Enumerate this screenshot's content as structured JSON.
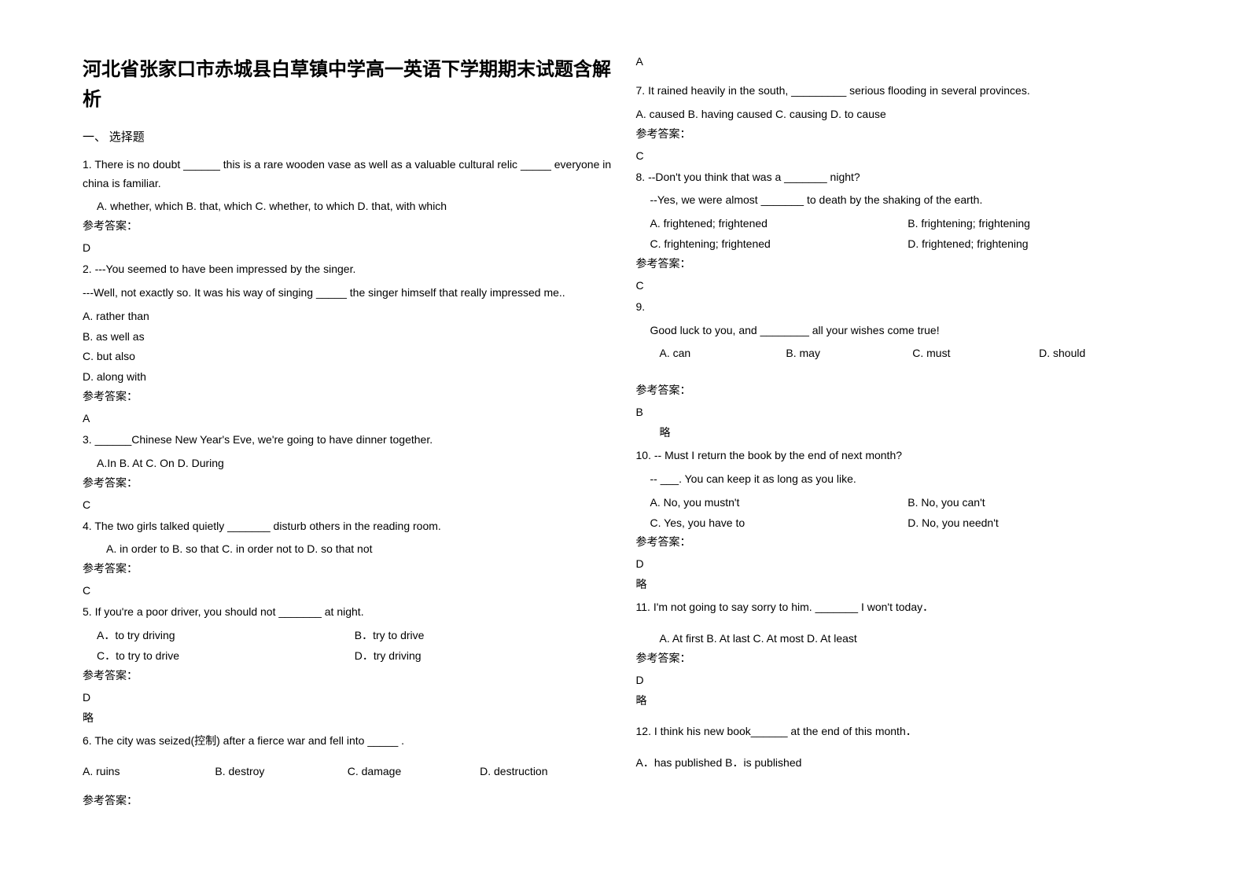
{
  "doc": {
    "title": "河北省张家口市赤城县白草镇中学高一英语下学期期末试题含解析",
    "section1": "一、 选择题",
    "answer_label": "参考答案：",
    "brief": "略",
    "q1": {
      "text": "1. There is no doubt ______ this is a rare wooden vase as well as a valuable cultural relic _____ everyone in china is familiar.",
      "opts": "A. whether, which    B. that, which    C. whether, to which    D. that, with which",
      "ans": "D"
    },
    "q2": {
      "line1": "2. ---You seemed to have been impressed by the singer.",
      "line2": " ---Well, not exactly so. It was his way of singing _____ the singer himself that really impressed me..",
      "a": "A. rather than",
      "b": "B. as well as",
      "c": "C. but also",
      "d": "D. along with",
      "ans": "A"
    },
    "q3": {
      "text": "3. ______Chinese New Year's Eve, we're going to have dinner together.",
      "opts": "A.In         B. At         C. On         D. During",
      "ans": "C"
    },
    "q4": {
      "text": "4. The two girls talked quietly _______ disturb others in the reading room.",
      "opts": "A. in order to     B. so that    C. in order not to   D. so that not",
      "ans": "C"
    },
    "q5": {
      "text": "5. If you're a poor driver, you should not _______ at night.",
      "a": "A．to try driving",
      "b": "B．try to drive",
      "c": "C．to try to drive",
      "d": "D．try driving",
      "ans": "D"
    },
    "q6": {
      "text": "6. The city was seized(控制) after a fierce war and fell into _____ .",
      "a": "A. ruins",
      "b": "B. destroy",
      "c": "C. damage",
      "d": "D. destruction",
      "ans": "A"
    },
    "q7": {
      "text": "7. It rained heavily in the south, _________ serious flooding in several provinces.",
      "opts": "A. caused  B. having caused       C. causing    D. to cause",
      "ans": "C"
    },
    "q8": {
      "line1": "8. --Don't you think that was a _______ night?",
      "line2": "--Yes, we were almost _______ to death by the shaking of the earth.",
      "a": "A. frightened; frightened",
      "b": "B. frightening; frightening",
      "c": "C. frightening; frightened",
      "d": "D. frightened; frightening",
      "ans": "C"
    },
    "q9": {
      "num": "9.",
      "text": "Good luck to you, and ________ all your wishes come true!",
      "a": "A. can",
      "b": "B. may",
      "c": "C. must",
      "d": "D. should",
      "ans": "B"
    },
    "q10": {
      "line1": "10. -- Must I return the book by the end of next month?",
      "line2": "-- ___. You can keep it as long as you like.",
      "a": "A. No, you mustn't",
      "b": "B. No, you can't",
      "c": "C. Yes, you have to",
      "d": "D. No, you needn't",
      "ans": "D"
    },
    "q11": {
      "text": "11. I'm not going to say sorry to him. _______ I won't today．",
      "opts": "A. At first      B. At last      C. At most      D. At least",
      "ans": "D"
    },
    "q12": {
      "text": "12. I think his new book______ at the end of this month．",
      "opts": " A．has published    B．is published"
    }
  }
}
